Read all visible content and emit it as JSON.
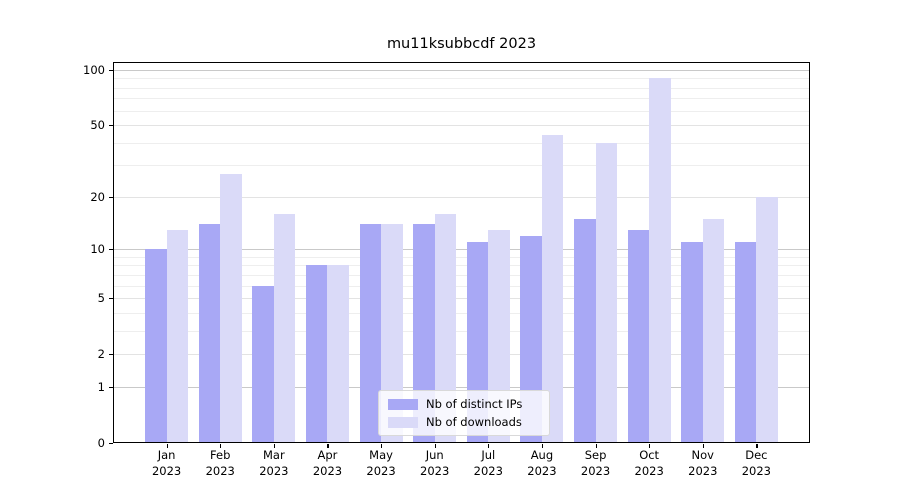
{
  "chart_data": {
    "type": "bar",
    "title": "mu11ksubbcdf 2023",
    "categories": [
      {
        "month": "Jan",
        "year": "2023"
      },
      {
        "month": "Feb",
        "year": "2023"
      },
      {
        "month": "Mar",
        "year": "2023"
      },
      {
        "month": "Apr",
        "year": "2023"
      },
      {
        "month": "May",
        "year": "2023"
      },
      {
        "month": "Jun",
        "year": "2023"
      },
      {
        "month": "Jul",
        "year": "2023"
      },
      {
        "month": "Aug",
        "year": "2023"
      },
      {
        "month": "Sep",
        "year": "2023"
      },
      {
        "month": "Oct",
        "year": "2023"
      },
      {
        "month": "Nov",
        "year": "2023"
      },
      {
        "month": "Dec",
        "year": "2023"
      }
    ],
    "series": [
      {
        "name": "Nb of distinct IPs",
        "color": "#a8a8f5",
        "values": [
          10,
          14,
          6,
          8,
          14,
          14,
          11,
          12,
          15,
          13,
          11,
          11
        ]
      },
      {
        "name": "Nb of downloads",
        "color": "#dadaf8",
        "values": [
          13,
          27,
          16,
          8,
          14,
          16,
          13,
          44,
          40,
          90,
          15,
          20
        ]
      }
    ],
    "y_axis": {
      "scale": "log1p",
      "ylim": [
        0,
        100
      ],
      "ticks": [
        0,
        1,
        2,
        5,
        10,
        20,
        50,
        100
      ],
      "minor_ticks": [
        3,
        4,
        6,
        7,
        8,
        9,
        30,
        40,
        60,
        70,
        80,
        90
      ],
      "mid_ticks": [
        2,
        5,
        20,
        50
      ],
      "decade_ticks": [
        1,
        10,
        100
      ]
    },
    "xlabel": "",
    "ylabel": "",
    "grid": "on",
    "legend": {
      "position": "lower center"
    },
    "grid_colors": {
      "decade": "#c9c9c9",
      "mid": "#e3e3e3",
      "minor": "#eeeeee"
    }
  }
}
